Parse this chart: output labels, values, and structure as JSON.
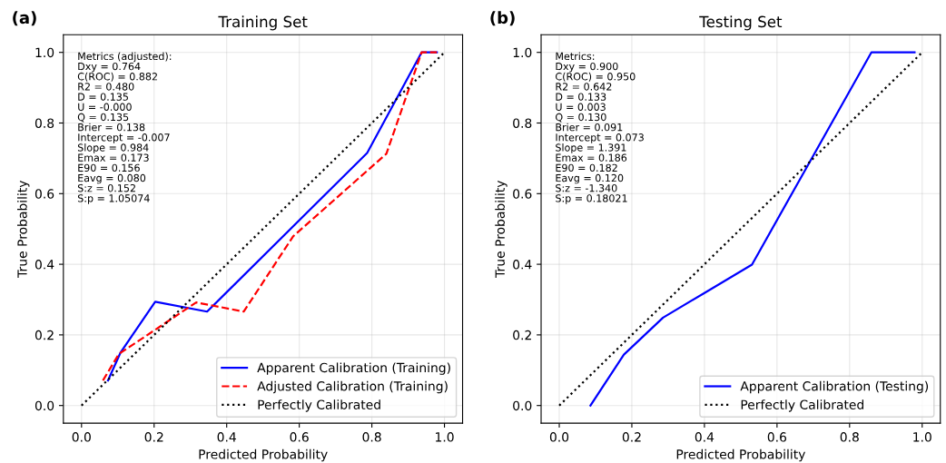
{
  "chart_data": [
    {
      "type": "line",
      "title": "Training Set",
      "xlabel": "Predicted Probability",
      "ylabel": "True Probability",
      "xlim": [
        -0.05,
        1.05
      ],
      "ylim": [
        -0.05,
        1.05
      ],
      "xticks": [
        {
          "value": 0,
          "label": "0.0"
        },
        {
          "value": 0.2,
          "label": "0.2"
        },
        {
          "value": 0.4,
          "label": "0.4"
        },
        {
          "value": 0.6,
          "label": "0.6"
        },
        {
          "value": 0.8,
          "label": "0.8"
        },
        {
          "value": 1,
          "label": "1.0"
        }
      ],
      "yticks": [
        {
          "value": 0,
          "label": "0.0"
        },
        {
          "value": 0.2,
          "label": "0.2"
        },
        {
          "value": 0.4,
          "label": "0.4"
        },
        {
          "value": 0.6,
          "label": "0.6"
        },
        {
          "value": 0.8,
          "label": "0.8"
        },
        {
          "value": 1,
          "label": "1.0"
        }
      ],
      "grid": true,
      "legend": "bottom right",
      "marker": "none",
      "series": [
        {
          "name": "Apparent Calibration (Training)",
          "color": "#0000ff",
          "line_style": "solid",
          "x": [
            0.073,
            0.107,
            0.203,
            0.346,
            0.787,
            0.937,
            0.979
          ],
          "values": [
            0.071,
            0.149,
            0.294,
            0.266,
            0.715,
            1.0,
            1.0
          ]
        },
        {
          "name": "Adjusted Calibration (Training)",
          "color": "#ff0000",
          "line_style": "dashed",
          "x": [
            0.059,
            0.103,
            0.316,
            0.447,
            0.583,
            0.84,
            0.937,
            0.979
          ],
          "values": [
            0.071,
            0.146,
            0.292,
            0.266,
            0.479,
            0.713,
            1.0,
            1.0
          ]
        },
        {
          "name": "Perfectly Calibrated",
          "color": "#000000",
          "line_style": "dotted",
          "x": [
            0,
            1
          ],
          "values": [
            0,
            1
          ]
        }
      ],
      "annotations": [
        "(a)",
        "Metrics (adjusted):\nDxy = 0.764\nC(ROC) = 0.882\nR2 = 0.480\nD = 0.135\nU = -0.000\nQ = 0.135\nBrier = 0.138\nIntercept = -0.007\nSlope = 0.984\nEmax = 0.173\nE90 = 0.156\nEavg = 0.080\nS:z = 0.152\nS:p = 1.05074"
      ]
    },
    {
      "type": "line",
      "title": "Testing Set",
      "xlabel": "Predicted Probability",
      "ylabel": "True Probability",
      "xlim": [
        -0.05,
        1.05
      ],
      "ylim": [
        -0.05,
        1.05
      ],
      "xticks": [
        {
          "value": 0,
          "label": "0.0"
        },
        {
          "value": 0.2,
          "label": "0.2"
        },
        {
          "value": 0.4,
          "label": "0.4"
        },
        {
          "value": 0.6,
          "label": "0.6"
        },
        {
          "value": 0.8,
          "label": "0.8"
        },
        {
          "value": 1,
          "label": "1.0"
        }
      ],
      "yticks": [
        {
          "value": 0,
          "label": "0.0"
        },
        {
          "value": 0.2,
          "label": "0.2"
        },
        {
          "value": 0.4,
          "label": "0.4"
        },
        {
          "value": 0.6,
          "label": "0.6"
        },
        {
          "value": 0.8,
          "label": "0.8"
        },
        {
          "value": 1,
          "label": "1.0"
        }
      ],
      "grid": true,
      "legend": "bottom right",
      "marker": "none",
      "series": [
        {
          "name": "Apparent Calibration (Testing)",
          "color": "#0000ff",
          "line_style": "solid",
          "x": [
            0.086,
            0.178,
            0.286,
            0.399,
            0.531,
            0.86,
            0.979
          ],
          "values": [
            0.0,
            0.144,
            0.249,
            0.318,
            0.399,
            1.0,
            1.0
          ]
        },
        {
          "name": "Perfectly Calibrated",
          "color": "#000000",
          "line_style": "dotted",
          "x": [
            0,
            1
          ],
          "values": [
            0,
            1
          ]
        }
      ],
      "annotations": [
        "(b)",
        "Metrics:\nDxy = 0.900\nC(ROC) = 0.950\nR2 = 0.642\nD = 0.133\nU = 0.003\nQ = 0.130\nBrier = 0.091\nIntercept = 0.073\nSlope = 1.391\nEmax = 0.186\nE90 = 0.182\nEavg = 0.120\nS:z = -1.340\nS:p = 0.18021"
      ]
    }
  ]
}
